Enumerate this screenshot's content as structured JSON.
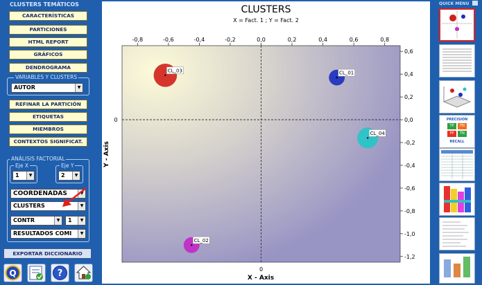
{
  "left_panel": {
    "section_title": "CLUSTERS TEMÁTICOS",
    "buttons": [
      "CARACTERÍSTICAS",
      "PARTICIONES",
      "HTML REPORT",
      "GRÁFICOS",
      "DENDROGRAMA"
    ],
    "variables_frame": {
      "title": "VARIABLES Y CLUSTERS",
      "selected": "AUTOR"
    },
    "buttons2": [
      "REFINAR LA PARTICIÓN",
      "ETIQUETAS",
      "MIEMBROS",
      "CONTEXTOS SIGNIFICAT."
    ],
    "factorial_frame": {
      "title": "ANÁLISIS FACTORIAL",
      "eje_x_label": "Eje X",
      "eje_y_label": "Eje Y",
      "eje_x_value": "1",
      "eje_y_value": "2",
      "combo_coordenadas": "COORDENADAS",
      "combo_clusters": "CLUSTERS",
      "combo_contr": "CONTR",
      "combo_contr_num": "1",
      "combo_resultados": "RESULTADOS COMI"
    },
    "export_button": "EXPORTAR DICCIONARIO",
    "icons": [
      "quit-icon",
      "settings-icon",
      "help-icon",
      "home-icon"
    ]
  },
  "chart_data": {
    "type": "scatter",
    "title": "CLUSTERS",
    "subtitle": "X = Fact. 1 ; Y = Fact. 2",
    "xlabel": "X - Axis",
    "ylabel": "Y - Axis",
    "xlim": [
      -0.9,
      0.9
    ],
    "ylim": [
      -1.25,
      0.65
    ],
    "xticks": [
      -0.8,
      -0.6,
      -0.4,
      -0.2,
      0.0,
      0.2,
      0.4,
      0.6,
      0.8
    ],
    "xtick_labels": [
      "-0,8",
      "-0,6",
      "-0,4",
      "-0,2",
      "0,0",
      "0,2",
      "0,4",
      "0,6",
      "0,8"
    ],
    "yticks": [
      0.6,
      0.4,
      0.2,
      0.0,
      -0.2,
      -0.4,
      -0.6,
      -0.8,
      -1.0,
      -1.2
    ],
    "ytick_labels": [
      "0,6",
      "0,4",
      "0,2",
      "0,0",
      "-0,2",
      "-0,4",
      "-0,6",
      "-0,8",
      "-1,0",
      "-1,2"
    ],
    "points": [
      {
        "label": "CL_03",
        "x": -0.62,
        "y": 0.39,
        "color": "#d0201a",
        "size": 1.4
      },
      {
        "label": "CL_01",
        "x": 0.49,
        "y": 0.37,
        "color": "#1a2ec0",
        "size": 0.95
      },
      {
        "label": "CL_04",
        "x": 0.69,
        "y": -0.16,
        "color": "#22c6c8",
        "size": 1.25
      },
      {
        "label": "CL_02",
        "x": -0.45,
        "y": -1.1,
        "color": "#c426c8",
        "size": 0.95
      }
    ]
  },
  "right_panel": {
    "title": "QUICK MENU",
    "thumbnails": [
      "cluster-thumb",
      "table-thumb",
      "3d-plot-thumb",
      "precision-recall-thumb",
      "data-grid-thumb",
      "heatmap-thumb",
      "list-thumb",
      "misc-thumb"
    ],
    "precision_text": "PRECISION",
    "recall_text": "RECALL",
    "tp": "TP",
    "fn": "FN",
    "fp": "FP",
    "tn": "TN"
  },
  "colors": {
    "panel_bg": "#1f5fae",
    "button_bg": "#fffdd0"
  }
}
